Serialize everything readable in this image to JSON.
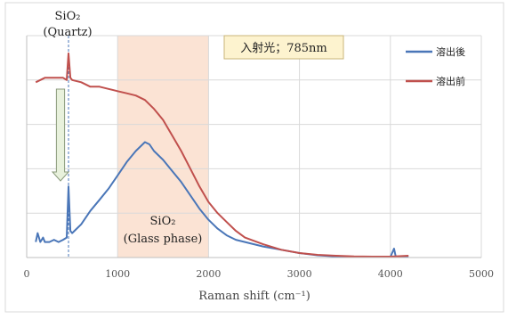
{
  "chart_data": {
    "type": "line",
    "title": "",
    "xlabel": "Raman shift (cm⁻¹)",
    "ylabel": "",
    "xlim": [
      0,
      5000
    ],
    "ylim": [
      0,
      100
    ],
    "x_ticks": [
      "0",
      "1000",
      "2000",
      "3000",
      "4000",
      "5000"
    ],
    "grid": "vertical+horizontal",
    "legend_position": "top-right",
    "annotation_box": "入射光；785nm",
    "quartz_label": [
      "SiO₂",
      "(Quartz)"
    ],
    "glass_label": [
      "SiO₂",
      "(Glass phase)"
    ],
    "quartz_peak_x": 460,
    "glass_region": [
      1000,
      2000
    ],
    "colors": {
      "after": "#4a76b8",
      "before": "#c0504d",
      "band": "#fbe3d4",
      "arrow_fill": "#e8f1dc",
      "arrow_stroke": "#8a9a7b",
      "box_fill": "#fdf3cf",
      "box_stroke": "#c9b57a"
    },
    "series": [
      {
        "name": "溶出後",
        "color": "#4a76b8",
        "x": [
          100,
          120,
          150,
          180,
          200,
          250,
          300,
          350,
          400,
          440,
          460,
          480,
          500,
          600,
          700,
          800,
          900,
          1000,
          1100,
          1200,
          1300,
          1350,
          1400,
          1500,
          1600,
          1700,
          1800,
          1900,
          2000,
          2100,
          2200,
          2300,
          2400,
          2600,
          2800,
          3000,
          3200,
          3400,
          3600,
          3800,
          4000,
          4040,
          4060,
          4080,
          4200
        ],
        "y": [
          7,
          11,
          7,
          9,
          7,
          7,
          8,
          7,
          8,
          9,
          32,
          12,
          11,
          15,
          21,
          26,
          31,
          37,
          43,
          48,
          52,
          51,
          48,
          44,
          39,
          34,
          28,
          22,
          17,
          13,
          10,
          8,
          7,
          5,
          3.5,
          2,
          1,
          0.5,
          0.3,
          0.2,
          0.2,
          4,
          0.3,
          0.2,
          0.2
        ]
      },
      {
        "name": "溶出前",
        "color": "#c0504d",
        "x": [
          100,
          200,
          300,
          400,
          440,
          460,
          480,
          500,
          600,
          700,
          800,
          900,
          1000,
          1100,
          1200,
          1300,
          1400,
          1500,
          1600,
          1700,
          1800,
          1900,
          2000,
          2100,
          2200,
          2300,
          2400,
          2600,
          2800,
          3000,
          3200,
          3400,
          3600,
          3800,
          4000,
          4200
        ],
        "y": [
          79,
          81,
          81,
          81,
          80,
          92,
          81,
          80,
          79,
          77,
          77,
          76,
          75,
          74,
          73,
          71,
          67,
          62,
          55,
          48,
          40,
          32,
          25,
          20,
          16,
          12,
          9,
          6,
          3.5,
          2,
          1.2,
          0.8,
          0.5,
          0.4,
          0.4,
          0.8
        ]
      }
    ]
  }
}
